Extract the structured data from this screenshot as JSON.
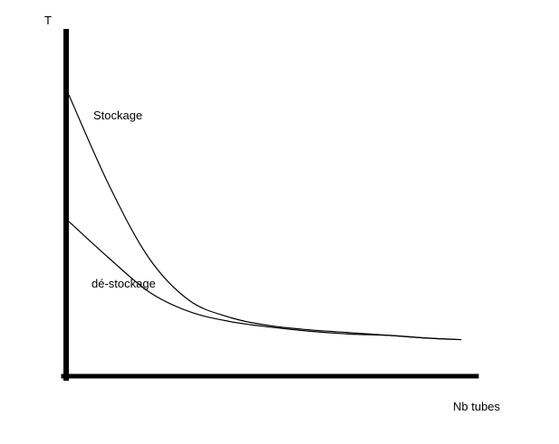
{
  "chart_data": {
    "type": "line",
    "title": "",
    "xlabel": "Nb tubes",
    "ylabel": "T",
    "xlim": [
      0,
      100
    ],
    "ylim": [
      0,
      100
    ],
    "grid": false,
    "legend": "none",
    "colors": {
      "axis": "#000000",
      "line": "#000000",
      "background": "#ffffff"
    },
    "series": [
      {
        "name": "Stockage",
        "x": [
          0,
          10,
          20,
          30,
          40,
          50,
          60,
          70,
          80,
          90,
          98
        ],
        "y": [
          100,
          68,
          42,
          27,
          21,
          18,
          16.5,
          15.5,
          14.5,
          13.5,
          13
        ]
      },
      {
        "name": "dé-stockage",
        "x": [
          0,
          10,
          20,
          30,
          40,
          50,
          60,
          70,
          80,
          90,
          98
        ],
        "y": [
          55,
          42,
          30,
          23,
          19.5,
          17.5,
          16,
          15,
          14.5,
          13.5,
          13
        ]
      }
    ]
  }
}
